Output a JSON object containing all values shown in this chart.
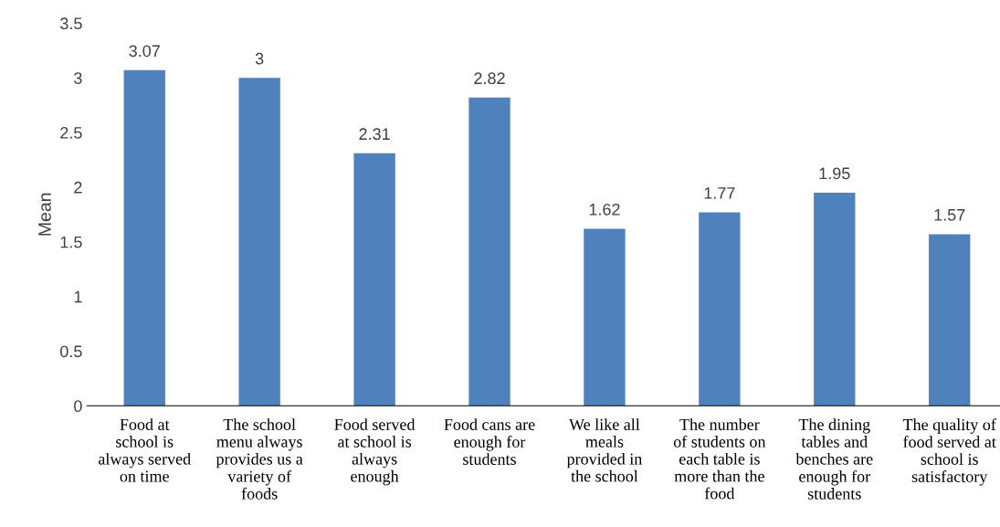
{
  "chart_data": {
    "type": "bar",
    "ylabel": "Mean",
    "categories": [
      "Food at\nschool is\nalways served\non time",
      "The school\nmenu always\nprovides us a\nvariety of\nfoods",
      "Food served\nat school is\nalways\nenough",
      "Food cans are\nenough for\nstudents",
      "We like all\nmeals\nprovided in\nthe school",
      "The number\nof students on\neach table is\nmore than the\nfood",
      "The dining\ntables and\nbenches are\nenough for\nstudents",
      "The quality of\nfood served at\nschool is\nsatisfactory"
    ],
    "values": [
      3.07,
      3,
      2.31,
      2.82,
      1.62,
      1.77,
      1.95,
      1.57
    ],
    "color": "#4f81bd",
    "ylim": [
      0,
      3.5
    ],
    "yticks": [
      0,
      0.5,
      1,
      1.5,
      2,
      2.5,
      3,
      3.5
    ],
    "grid": false,
    "data_labels": true
  }
}
